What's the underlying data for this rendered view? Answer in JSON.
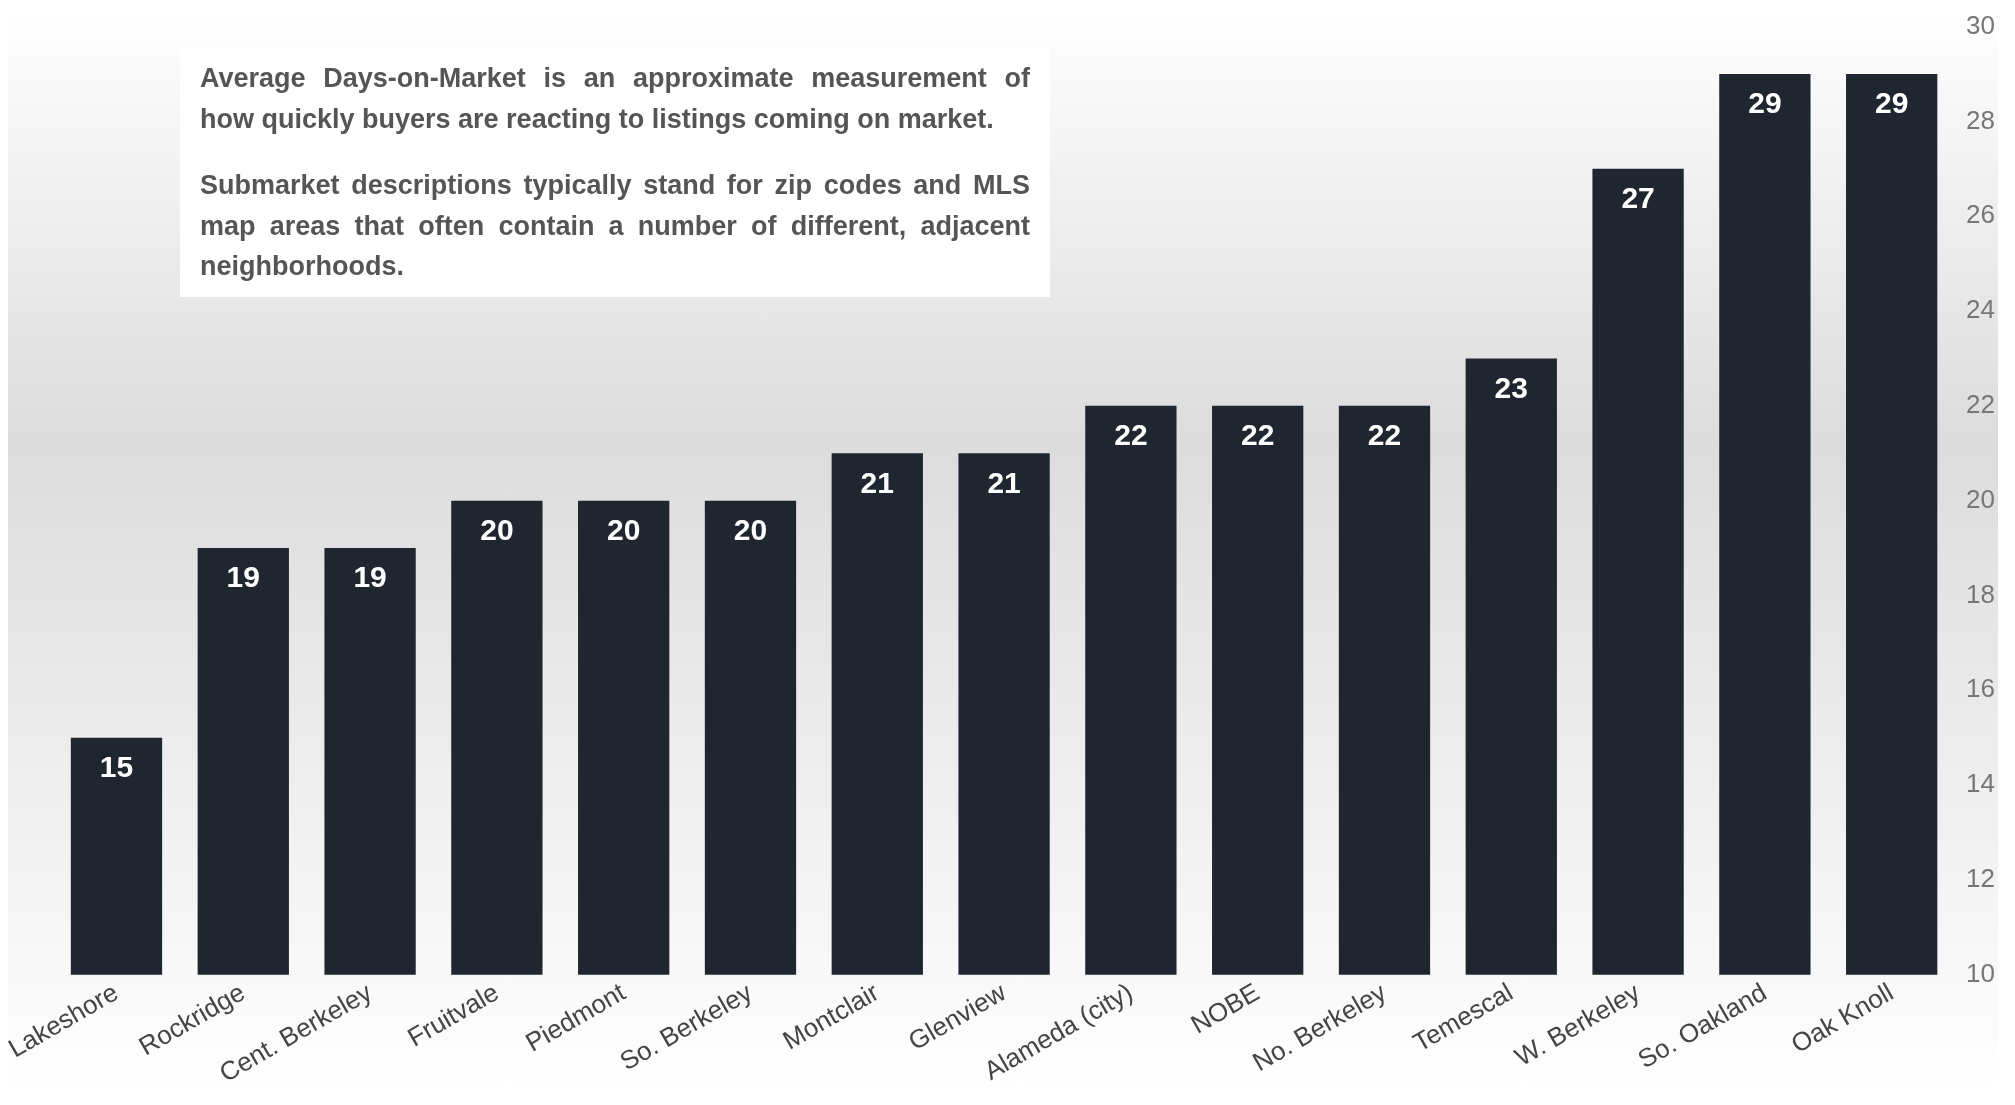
{
  "chart_data": {
    "type": "bar",
    "categories": [
      "Lakeshore",
      "Rockridge",
      "Cent. Berkeley",
      "Fruitvale",
      "Piedmont",
      "So. Berkeley",
      "Montclair",
      "Glenview",
      "Alameda (city)",
      "NOBE",
      "No. Berkeley",
      "Temescal",
      "W. Berkeley",
      "So. Oakland",
      "Oak Knoll"
    ],
    "values": [
      15,
      19,
      19,
      20,
      20,
      20,
      21,
      21,
      22,
      22,
      22,
      23,
      27,
      29,
      29
    ],
    "color": "#1f2630",
    "ylim": [
      10,
      30
    ],
    "yticks": [
      10,
      12,
      14,
      16,
      18,
      20,
      22,
      24,
      26,
      28,
      30
    ],
    "grid": false,
    "data_labels": true,
    "annotations": [
      "Average Days-on-Market is an approximate measurement of how quickly buyers are reacting to listings coming on market.",
      "Submarket descriptions typically stand for zip codes and MLS map areas that often contain a number of different, adjacent neighborhoods."
    ]
  }
}
